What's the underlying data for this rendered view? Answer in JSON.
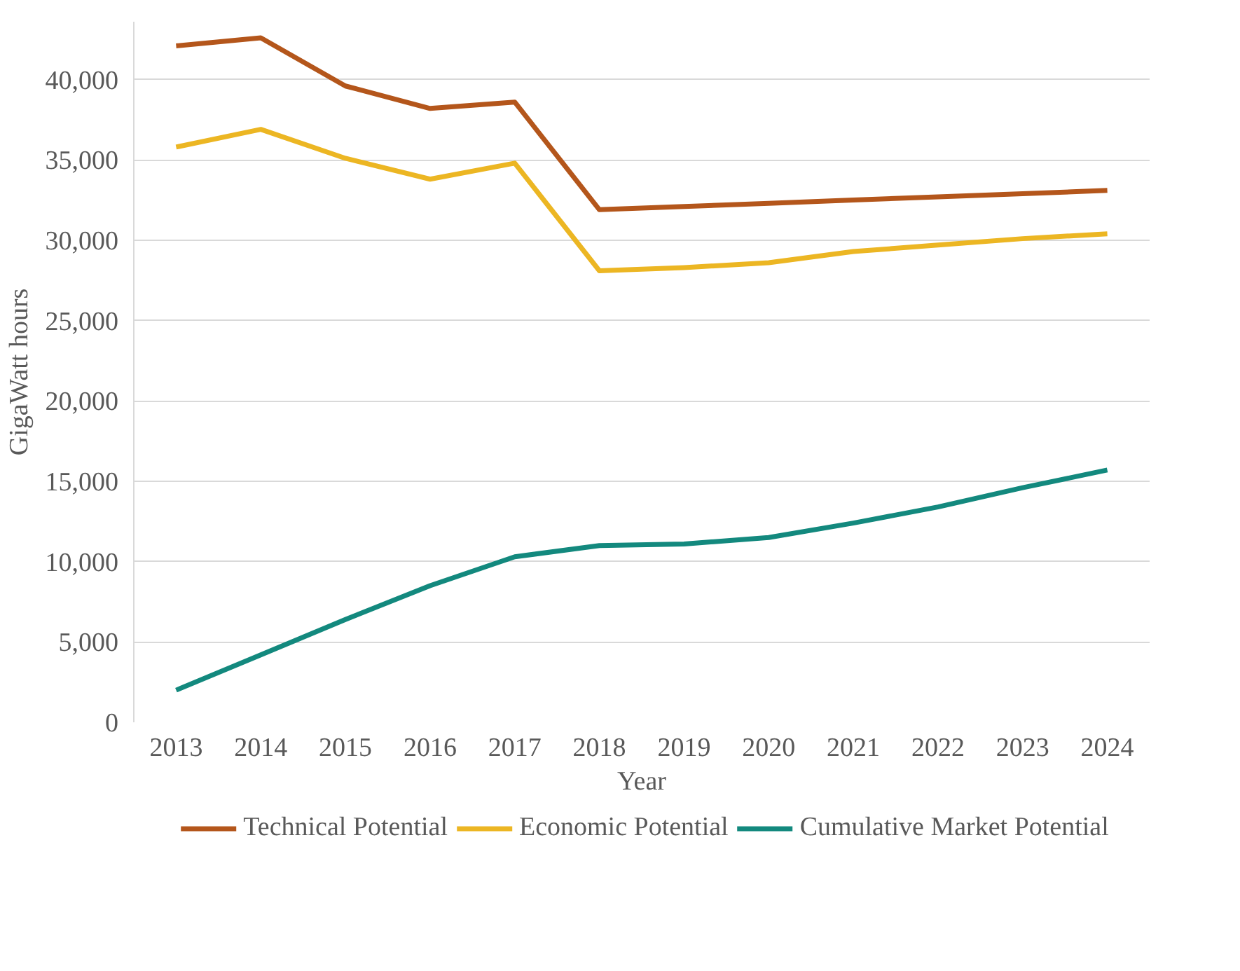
{
  "chart_data": {
    "type": "line",
    "xlabel": "Year",
    "ylabel": "GigaWatt hours",
    "categories": [
      "2013",
      "2014",
      "2015",
      "2016",
      "2017",
      "2018",
      "2019",
      "2020",
      "2021",
      "2022",
      "2023",
      "2024"
    ],
    "series": [
      {
        "name": "Technical Potential",
        "color": "#b4561b",
        "values": [
          42100,
          42600,
          39600,
          38200,
          38600,
          31900,
          32100,
          32300,
          32500,
          32700,
          32900,
          33100
        ]
      },
      {
        "name": "Economic Potential",
        "color": "#ecb623",
        "values": [
          35800,
          36900,
          35100,
          33800,
          34800,
          28100,
          28300,
          28600,
          29300,
          29700,
          30100,
          30400
        ]
      },
      {
        "name": "Cumulative Market Potential",
        "color": "#13897e",
        "values": [
          2000,
          4200,
          6400,
          8500,
          10300,
          11000,
          11100,
          11500,
          12400,
          13400,
          14600,
          15700
        ]
      }
    ],
    "ylim": [
      0,
      43600
    ],
    "yticks": [
      {
        "value": 0,
        "label": "0"
      },
      {
        "value": 5000,
        "label": "5,000"
      },
      {
        "value": 10000,
        "label": "10,000"
      },
      {
        "value": 15000,
        "label": "15,000"
      },
      {
        "value": 20000,
        "label": "20,000"
      },
      {
        "value": 25000,
        "label": "25,000"
      },
      {
        "value": 30000,
        "label": "30,000"
      },
      {
        "value": 35000,
        "label": "35,000"
      },
      {
        "value": 40000,
        "label": "40,000"
      }
    ],
    "grid": "y",
    "legend": "bottom",
    "marker": "none",
    "line_style": "solid"
  }
}
